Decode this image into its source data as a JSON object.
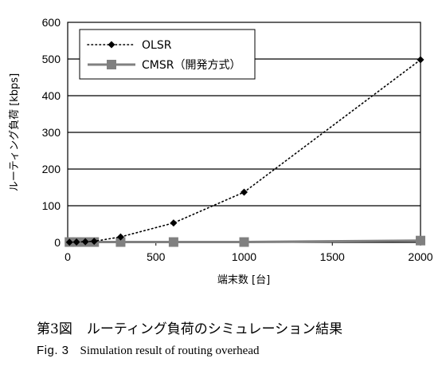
{
  "chart_data": {
    "type": "line",
    "xlabel": "端末数 [台]",
    "ylabel": "ルーティング負荷 [kbps]",
    "xlim": [
      0,
      2000
    ],
    "ylim": [
      0,
      600
    ],
    "xticks": [
      0,
      500,
      1000,
      1500,
      2000
    ],
    "yticks": [
      0,
      100,
      200,
      300,
      400,
      500,
      600
    ],
    "grid": "horizontal",
    "legend_position": "top-left",
    "series": [
      {
        "name": "OLSR",
        "style": "dotted",
        "marker": "diamond",
        "color": "#000000",
        "x": [
          10,
          50,
          100,
          150,
          300,
          600,
          1000,
          2000
        ],
        "y": [
          0.5,
          1,
          2,
          3,
          15,
          53,
          137,
          498
        ]
      },
      {
        "name": "CMSR（開発方式）",
        "style": "solid",
        "marker": "square",
        "color": "#808080",
        "x": [
          10,
          50,
          100,
          150,
          300,
          600,
          1000,
          2000
        ],
        "y": [
          1,
          1,
          1,
          1,
          1,
          1,
          1,
          5
        ]
      }
    ]
  },
  "caption": {
    "jp_label": "第3図",
    "jp_text": "ルーティング負荷のシミュレーション結果",
    "en_label": "Fig. 3",
    "en_text": "Simulation result of routing overhead"
  }
}
